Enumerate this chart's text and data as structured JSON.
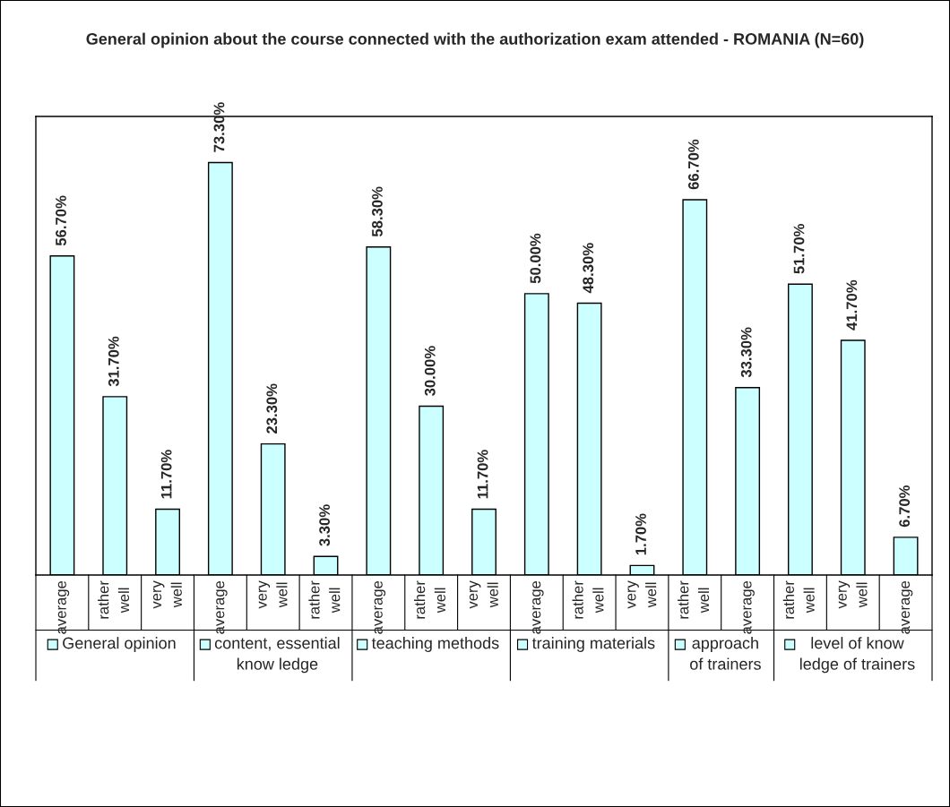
{
  "chart_data": {
    "type": "bar",
    "title": "General opinion about the course connected with the authorization exam attended - ROMANIA (N=60)",
    "categories": [
      "average",
      "rather well",
      "very well",
      "average",
      "very well",
      "rather well",
      "average",
      "rather well",
      "very well",
      "average",
      "rather well",
      "very well",
      "rather well",
      "average",
      "rather well",
      "very well",
      "average"
    ],
    "series": [
      {
        "name": "General opinion",
        "color": "#ccffff",
        "values": [
          56.7,
          31.7,
          11.7,
          null,
          null,
          null,
          null,
          null,
          null,
          null,
          null,
          null,
          null,
          null,
          null,
          null,
          null
        ],
        "value_labels": [
          "56.70%",
          "31.70%",
          "11.70%",
          null,
          null,
          null,
          null,
          null,
          null,
          null,
          null,
          null,
          null,
          null,
          null,
          null,
          null
        ]
      },
      {
        "name": "content, essential know ledge",
        "color": "#ccffff",
        "values": [
          null,
          null,
          null,
          73.3,
          23.3,
          3.3,
          null,
          null,
          null,
          null,
          null,
          null,
          null,
          null,
          null,
          null,
          null
        ],
        "value_labels": [
          null,
          null,
          null,
          "73.30%",
          "23.30%",
          "3.30%",
          null,
          null,
          null,
          null,
          null,
          null,
          null,
          null,
          null,
          null,
          null
        ]
      },
      {
        "name": "teaching methods",
        "color": "#ccffff",
        "values": [
          null,
          null,
          null,
          null,
          null,
          null,
          58.3,
          30.0,
          11.7,
          null,
          null,
          null,
          null,
          null,
          null,
          null,
          null
        ],
        "value_labels": [
          null,
          null,
          null,
          null,
          null,
          null,
          "58.30%",
          "30.00%",
          "11.70%",
          null,
          null,
          null,
          null,
          null,
          null,
          null,
          null
        ]
      },
      {
        "name": "training materials",
        "color": "#ccffff",
        "values": [
          null,
          null,
          null,
          null,
          null,
          null,
          null,
          null,
          null,
          50.0,
          48.3,
          1.7,
          null,
          null,
          null,
          null,
          null
        ],
        "value_labels": [
          null,
          null,
          null,
          null,
          null,
          null,
          null,
          null,
          null,
          "50.00%",
          "48.30%",
          "1.70%",
          null,
          null,
          null,
          null,
          null
        ]
      },
      {
        "name": "approach of trainers",
        "color": "#ccffff",
        "values": [
          null,
          null,
          null,
          null,
          null,
          null,
          null,
          null,
          null,
          null,
          null,
          null,
          66.7,
          33.3,
          null,
          null,
          null
        ],
        "value_labels": [
          null,
          null,
          null,
          null,
          null,
          null,
          null,
          null,
          null,
          null,
          null,
          null,
          "66.70%",
          "33.30%",
          null,
          null,
          null
        ]
      },
      {
        "name": "level of know ledge of trainers",
        "color": "#ccffff",
        "values": [
          null,
          null,
          null,
          null,
          null,
          null,
          null,
          null,
          null,
          null,
          null,
          null,
          null,
          null,
          51.7,
          41.7,
          6.7
        ],
        "value_labels": [
          null,
          null,
          null,
          null,
          null,
          null,
          null,
          null,
          null,
          null,
          null,
          null,
          null,
          null,
          "51.70%",
          "41.70%",
          "6.70%"
        ]
      }
    ],
    "ylim": [
      0,
      81.5
    ],
    "tick_labels": "x",
    "legend": "bottom"
  }
}
